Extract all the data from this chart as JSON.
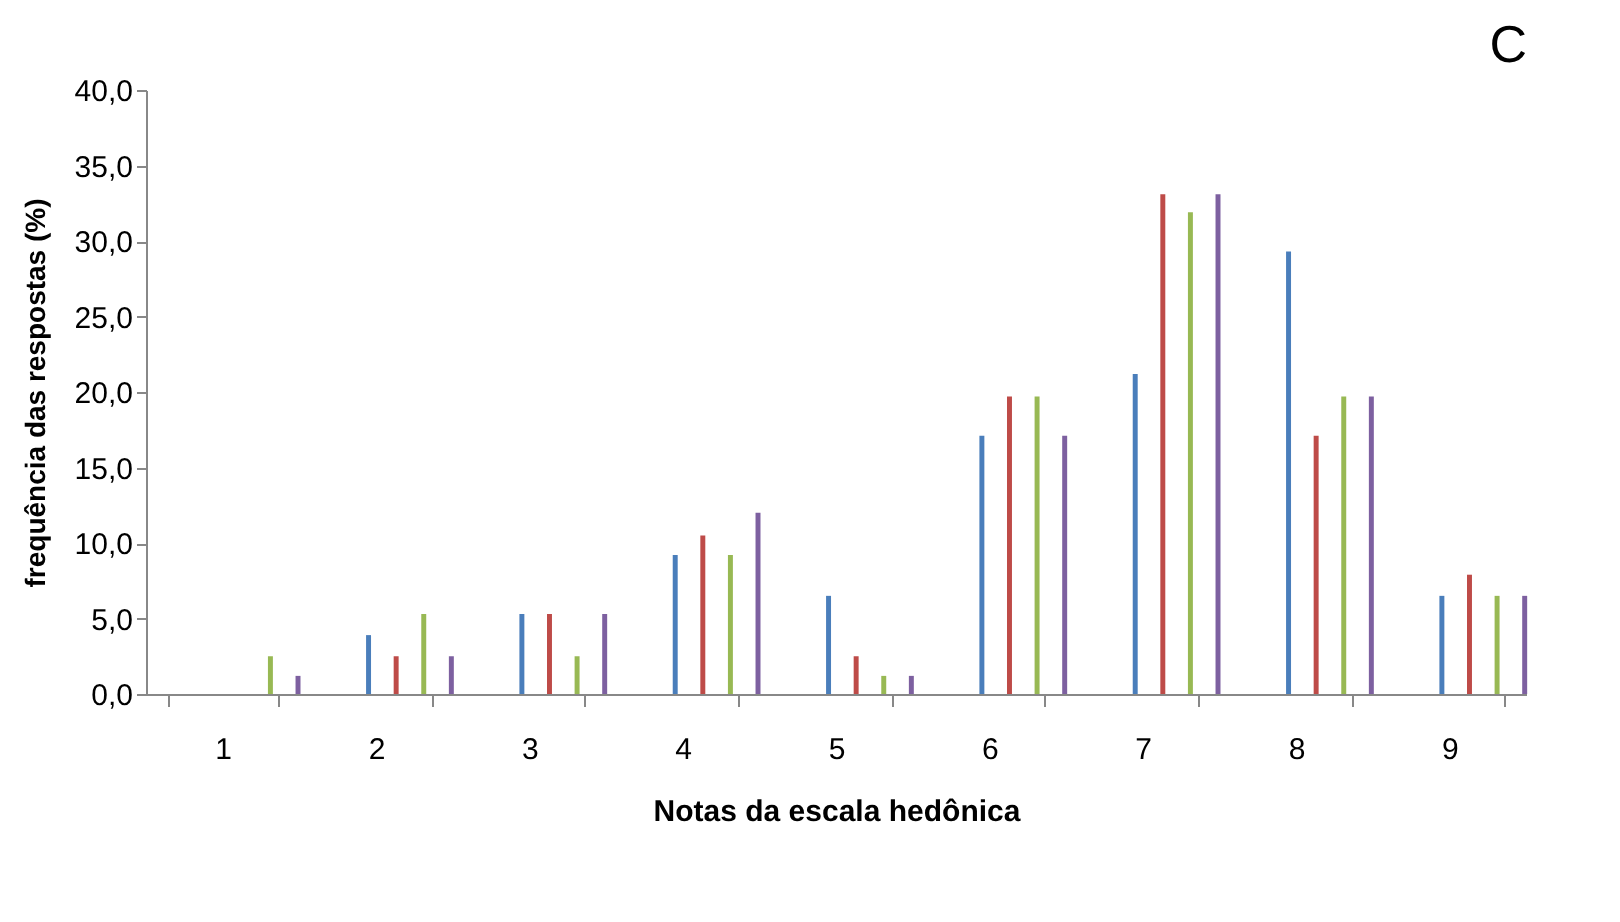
{
  "chart_data": {
    "type": "bar",
    "title": "C",
    "xlabel": "Notas da escala hedônica",
    "ylabel": "frequência das respostas (%)",
    "categories": [
      "1",
      "2",
      "3",
      "4",
      "5",
      "6",
      "7",
      "8",
      "9"
    ],
    "series": [
      {
        "color": "#4a7ebb",
        "values": [
          0,
          3.9,
          5.3,
          9.2,
          6.5,
          17.1,
          21.2,
          29.3,
          6.5
        ]
      },
      {
        "color": "#be4b48",
        "values": [
          0,
          2.5,
          5.3,
          10.5,
          2.5,
          19.7,
          33.1,
          17.1,
          7.9
        ]
      },
      {
        "color": "#98b954",
        "values": [
          2.5,
          5.3,
          2.5,
          9.2,
          1.2,
          19.7,
          31.9,
          19.7,
          6.5
        ]
      },
      {
        "color": "#7d60a0",
        "values": [
          1.2,
          2.5,
          5.3,
          12.0,
          1.2,
          17.1,
          33.1,
          19.7,
          6.5
        ]
      }
    ],
    "ylim": [
      0,
      40
    ],
    "yticks": [
      {
        "value": 0,
        "label": "0,0"
      },
      {
        "value": 5,
        "label": "5,0"
      },
      {
        "value": 10,
        "label": "10,0"
      },
      {
        "value": 15,
        "label": "15,0"
      },
      {
        "value": 20,
        "label": "20,0"
      },
      {
        "value": 25,
        "label": "25,0"
      },
      {
        "value": 30,
        "label": "30,0"
      },
      {
        "value": 35,
        "label": "35,0"
      },
      {
        "value": 40,
        "label": "40,0"
      }
    ],
    "grid": false,
    "legend": false
  }
}
